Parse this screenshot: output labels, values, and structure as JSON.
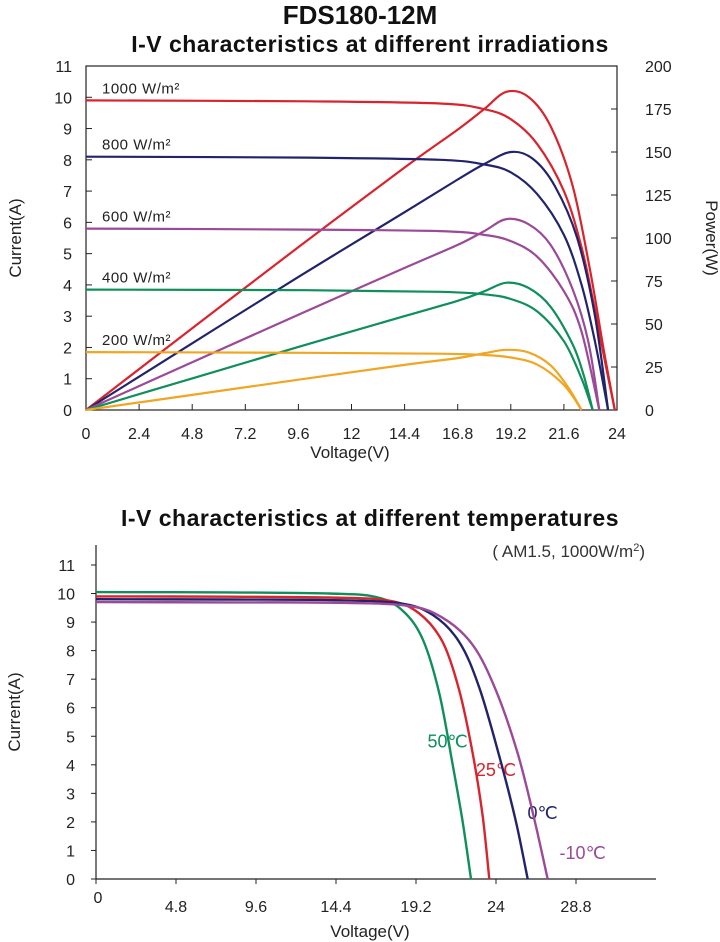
{
  "header": {
    "model": "FDS180-12M"
  },
  "chart_data": [
    {
      "type": "line",
      "title": "I-V characteristics at different irradiations",
      "xlabel": "Voltage(V)",
      "ylabel": "Current(A)",
      "y2label": "Power(W)",
      "xlim": [
        0,
        24
      ],
      "ylim": [
        0,
        11
      ],
      "y2lim": [
        0,
        200
      ],
      "x_ticks": [
        "0",
        "2.4",
        "4.8",
        "7.2",
        "9.6",
        "12",
        "14.4",
        "16.8",
        "19.2",
        "21.6",
        "24"
      ],
      "y_ticks": [
        "0",
        "1",
        "2",
        "3",
        "4",
        "5",
        "6",
        "7",
        "8",
        "9",
        "10",
        "11"
      ],
      "y2_ticks": [
        "0",
        "25",
        "50",
        "75",
        "100",
        "125",
        "150",
        "175",
        "200"
      ],
      "series": [
        {
          "name": "1000 W/m²",
          "color": "#d9232d",
          "isc": 9.9,
          "voc": 23.9,
          "pmax": 185,
          "vmp": 19.0,
          "iv": [
            [
              0,
              9.9
            ],
            [
              10,
              9.87
            ],
            [
              16,
              9.8
            ],
            [
              18,
              9.62
            ],
            [
              19.2,
              9.3
            ],
            [
              20.4,
              8.5
            ],
            [
              21.6,
              7.0
            ],
            [
              22.4,
              5.2
            ],
            [
              23.0,
              3.2
            ],
            [
              23.5,
              1.4
            ],
            [
              23.9,
              0
            ]
          ],
          "pv": [
            [
              0,
              0
            ],
            [
              4.8,
              47.5
            ],
            [
              9.6,
              94.7
            ],
            [
              14.4,
              141
            ],
            [
              16.8,
              163
            ],
            [
              18.0,
              175
            ],
            [
              19.0,
              185
            ],
            [
              20.0,
              182
            ],
            [
              21.0,
              165
            ],
            [
              22.0,
              130
            ],
            [
              22.8,
              80
            ],
            [
              23.4,
              35
            ],
            [
              23.9,
              0
            ]
          ]
        },
        {
          "name": "800 W/m²",
          "color": "#22246b",
          "isc": 8.1,
          "voc": 23.6,
          "pmax": 150,
          "vmp": 19.2,
          "iv": [
            [
              0,
              8.1
            ],
            [
              10,
              8.07
            ],
            [
              16,
              8.0
            ],
            [
              18,
              7.85
            ],
            [
              19.2,
              7.6
            ],
            [
              20.4,
              6.9
            ],
            [
              21.6,
              5.6
            ],
            [
              22.4,
              4.0
            ],
            [
              23.0,
              2.2
            ],
            [
              23.6,
              0
            ]
          ],
          "pv": [
            [
              0,
              0
            ],
            [
              4.8,
              38.8
            ],
            [
              9.6,
              77.4
            ],
            [
              14.4,
              115
            ],
            [
              16.8,
              134
            ],
            [
              18.0,
              143
            ],
            [
              19.2,
              150
            ],
            [
              20.2,
              146
            ],
            [
              21.2,
              130
            ],
            [
              22.2,
              100
            ],
            [
              23.0,
              55
            ],
            [
              23.6,
              0
            ]
          ]
        },
        {
          "name": "600 W/m²",
          "color": "#9b4a97",
          "isc": 5.8,
          "voc": 23.2,
          "pmax": 111,
          "vmp": 19.0,
          "iv": [
            [
              0,
              5.8
            ],
            [
              10,
              5.77
            ],
            [
              16,
              5.72
            ],
            [
              18,
              5.6
            ],
            [
              19.2,
              5.4
            ],
            [
              20.4,
              4.9
            ],
            [
              21.6,
              3.8
            ],
            [
              22.4,
              2.5
            ],
            [
              23.2,
              0
            ]
          ],
          "pv": [
            [
              0,
              0
            ],
            [
              4.8,
              27.8
            ],
            [
              9.6,
              55.4
            ],
            [
              14.4,
              82.6
            ],
            [
              16.8,
              96
            ],
            [
              18.0,
              104
            ],
            [
              19.0,
              111
            ],
            [
              20.0,
              108
            ],
            [
              21.0,
              96
            ],
            [
              22.0,
              70
            ],
            [
              22.7,
              40
            ],
            [
              23.2,
              0
            ]
          ]
        },
        {
          "name": "400 W/m²",
          "color": "#0e8f5b",
          "isc": 3.85,
          "voc": 22.9,
          "pmax": 74,
          "vmp": 19.0,
          "iv": [
            [
              0,
              3.85
            ],
            [
              10,
              3.83
            ],
            [
              16,
              3.78
            ],
            [
              18,
              3.7
            ],
            [
              19.2,
              3.55
            ],
            [
              20.4,
              3.15
            ],
            [
              21.6,
              2.2
            ],
            [
              22.4,
              1.0
            ],
            [
              22.9,
              0
            ]
          ],
          "pv": [
            [
              0,
              0
            ],
            [
              4.8,
              18.4
            ],
            [
              9.6,
              36.7
            ],
            [
              14.4,
              54.6
            ],
            [
              16.8,
              63.5
            ],
            [
              18.0,
              69
            ],
            [
              19.0,
              74
            ],
            [
              20.0,
              71
            ],
            [
              21.0,
              60
            ],
            [
              22.0,
              38
            ],
            [
              22.5,
              20
            ],
            [
              22.9,
              0
            ]
          ]
        },
        {
          "name": "200 W/m²",
          "color": "#f0a623",
          "isc": 1.85,
          "voc": 22.4,
          "pmax": 35,
          "vmp": 19.0,
          "iv": [
            [
              0,
              1.85
            ],
            [
              10,
              1.83
            ],
            [
              16,
              1.8
            ],
            [
              18,
              1.76
            ],
            [
              19.2,
              1.68
            ],
            [
              20.4,
              1.45
            ],
            [
              21.6,
              0.8
            ],
            [
              22.4,
              0
            ]
          ],
          "pv": [
            [
              0,
              0
            ],
            [
              4.8,
              8.8
            ],
            [
              9.6,
              17.6
            ],
            [
              14.4,
              26.2
            ],
            [
              16.8,
              30.2
            ],
            [
              18.0,
              33
            ],
            [
              19.0,
              35
            ],
            [
              20.0,
              33.5
            ],
            [
              21.0,
              26
            ],
            [
              21.8,
              13
            ],
            [
              22.4,
              0
            ]
          ]
        }
      ]
    },
    {
      "type": "line",
      "title": "I-V characteristics at different temperatures",
      "subtitle": "( AM1.5, 1000W/m²)",
      "xlabel": "Voltage(V)",
      "ylabel": "Current(A)",
      "xlim": [
        0,
        33.6
      ],
      "ylim": [
        0,
        11
      ],
      "x_ticks": [
        "0",
        "4.8",
        "9.6",
        "14.4",
        "19.2",
        "24",
        "28.8"
      ],
      "y_ticks": [
        "0",
        "1",
        "2",
        "3",
        "4",
        "5",
        "6",
        "7",
        "8",
        "9",
        "10",
        "11"
      ],
      "series": [
        {
          "name": "50℃",
          "color": "#0e8f5b",
          "iv": [
            [
              0,
              10.05
            ],
            [
              8,
              10.04
            ],
            [
              14,
              10.0
            ],
            [
              16.8,
              9.88
            ],
            [
              18.4,
              9.4
            ],
            [
              19.6,
              8.4
            ],
            [
              20.6,
              6.5
            ],
            [
              21.4,
              4.0
            ],
            [
              22.0,
              2.0
            ],
            [
              22.5,
              0
            ]
          ]
        },
        {
          "name": "25℃",
          "color": "#d9232d",
          "iv": [
            [
              0,
              9.9
            ],
            [
              8,
              9.89
            ],
            [
              14,
              9.86
            ],
            [
              17.6,
              9.75
            ],
            [
              19.4,
              9.3
            ],
            [
              20.8,
              8.3
            ],
            [
              21.8,
              6.6
            ],
            [
              22.6,
              4.4
            ],
            [
              23.2,
              2.2
            ],
            [
              23.6,
              0
            ]
          ]
        },
        {
          "name": "0℃",
          "color": "#22246b",
          "iv": [
            [
              0,
              9.8
            ],
            [
              8,
              9.79
            ],
            [
              14,
              9.77
            ],
            [
              18.2,
              9.66
            ],
            [
              20.2,
              9.25
            ],
            [
              21.8,
              8.3
            ],
            [
              23.0,
              6.7
            ],
            [
              24.2,
              4.3
            ],
            [
              25.2,
              2.0
            ],
            [
              25.9,
              0
            ]
          ]
        },
        {
          "name": "-10℃",
          "color": "#9b4a97",
          "iv": [
            [
              0,
              9.7
            ],
            [
              8,
              9.69
            ],
            [
              14,
              9.68
            ],
            [
              18.6,
              9.58
            ],
            [
              20.8,
              9.15
            ],
            [
              22.6,
              8.2
            ],
            [
              24.0,
              6.6
            ],
            [
              25.3,
              4.4
            ],
            [
              26.3,
              2.1
            ],
            [
              27.1,
              0
            ]
          ]
        }
      ]
    }
  ]
}
